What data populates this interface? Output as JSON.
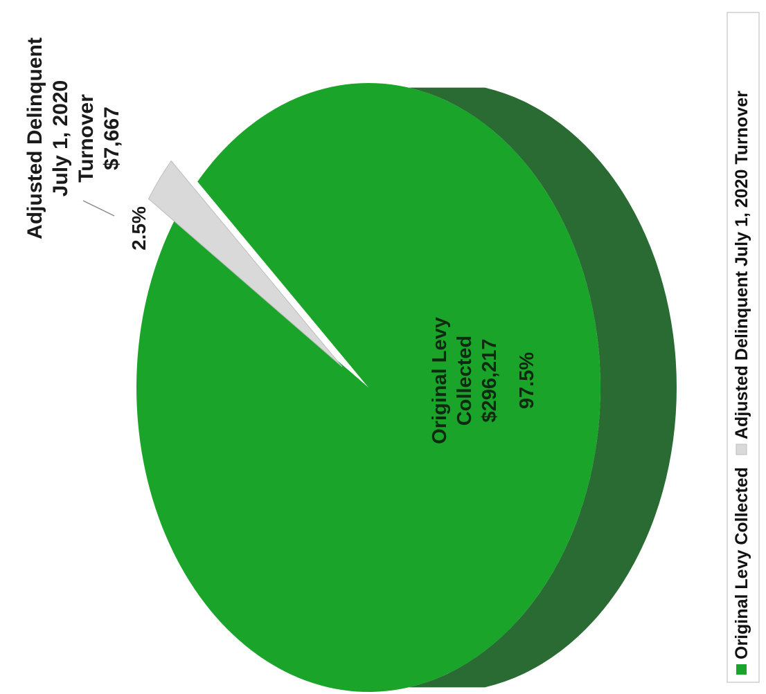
{
  "chart_data": {
    "type": "pie",
    "three_d": true,
    "rotation": "rotated 90 degrees counter-clockwise",
    "slices": [
      {
        "name": "Original Levy Collected",
        "value": 296217,
        "value_label": "$296,217",
        "percent": 97.5,
        "percent_label": "97.5%",
        "label_lines": [
          "Original Levy",
          "Collected",
          "$296,217"
        ],
        "color": "#1aa52a",
        "side_color": "#2a6b33"
      },
      {
        "name": "Adjusted Delinquent July 1, 2020 Turnover",
        "value": 7667,
        "value_label": "$7,667",
        "percent": 2.5,
        "percent_label": "2.5%",
        "label_lines": [
          "Adjusted Delinquent",
          "July 1, 2020",
          "Turnover",
          "$7,667"
        ],
        "color": "#d9d9d9",
        "side_color": "#a8a8a8"
      }
    ],
    "legend": {
      "position": "right",
      "entries": [
        {
          "label": "Original Levy Collected",
          "color": "#1aa52a"
        },
        {
          "label": "Adjusted Delinquent July 1, 2020 Turnover",
          "color": "#d9d9d9"
        }
      ]
    }
  }
}
